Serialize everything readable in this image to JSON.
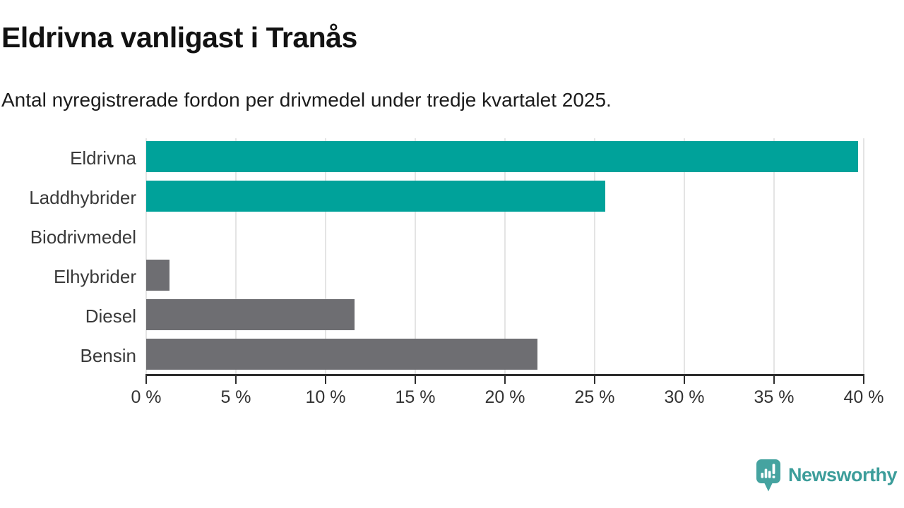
{
  "header": {
    "title": "Eldrivna vanligast i Tranås",
    "subtitle": "Antal nyregistrerade fordon per drivmedel under tredje kvartalet 2025."
  },
  "chart_data": {
    "type": "bar",
    "orientation": "horizontal",
    "title": "Eldrivna vanligast i Tranås",
    "subtitle": "Antal nyregistrerade fordon per drivmedel under tredje kvartalet 2025.",
    "categories": [
      "Eldrivna",
      "Laddhybrider",
      "Biodrivmedel",
      "Elhybrider",
      "Diesel",
      "Bensin"
    ],
    "values": [
      39.7,
      25.6,
      0,
      1.3,
      11.6,
      21.8
    ],
    "unit": "%",
    "xlim": [
      0,
      40
    ],
    "xtick_values": [
      0,
      5,
      10,
      15,
      20,
      25,
      30,
      35,
      40
    ],
    "xtick_labels": [
      "0 %",
      "5 %",
      "10 %",
      "15 %",
      "20 %",
      "25 %",
      "30 %",
      "35 %",
      "40 %"
    ],
    "grid": true,
    "legend": "none",
    "bar_colors": [
      "#00a29a",
      "#00a29a",
      "#6e6e72",
      "#6e6e72",
      "#6e6e72",
      "#6e6e72"
    ],
    "colors": {
      "highlight_teal": "#00a29a",
      "neutral_gray": "#6e6e72",
      "gridline": "#e4e4e4",
      "axis": "#2d2d2d",
      "text": "#3a3a3a"
    }
  },
  "footer": {
    "logo_text": "Newsworthy",
    "logo_color": "#3c9d9a"
  }
}
